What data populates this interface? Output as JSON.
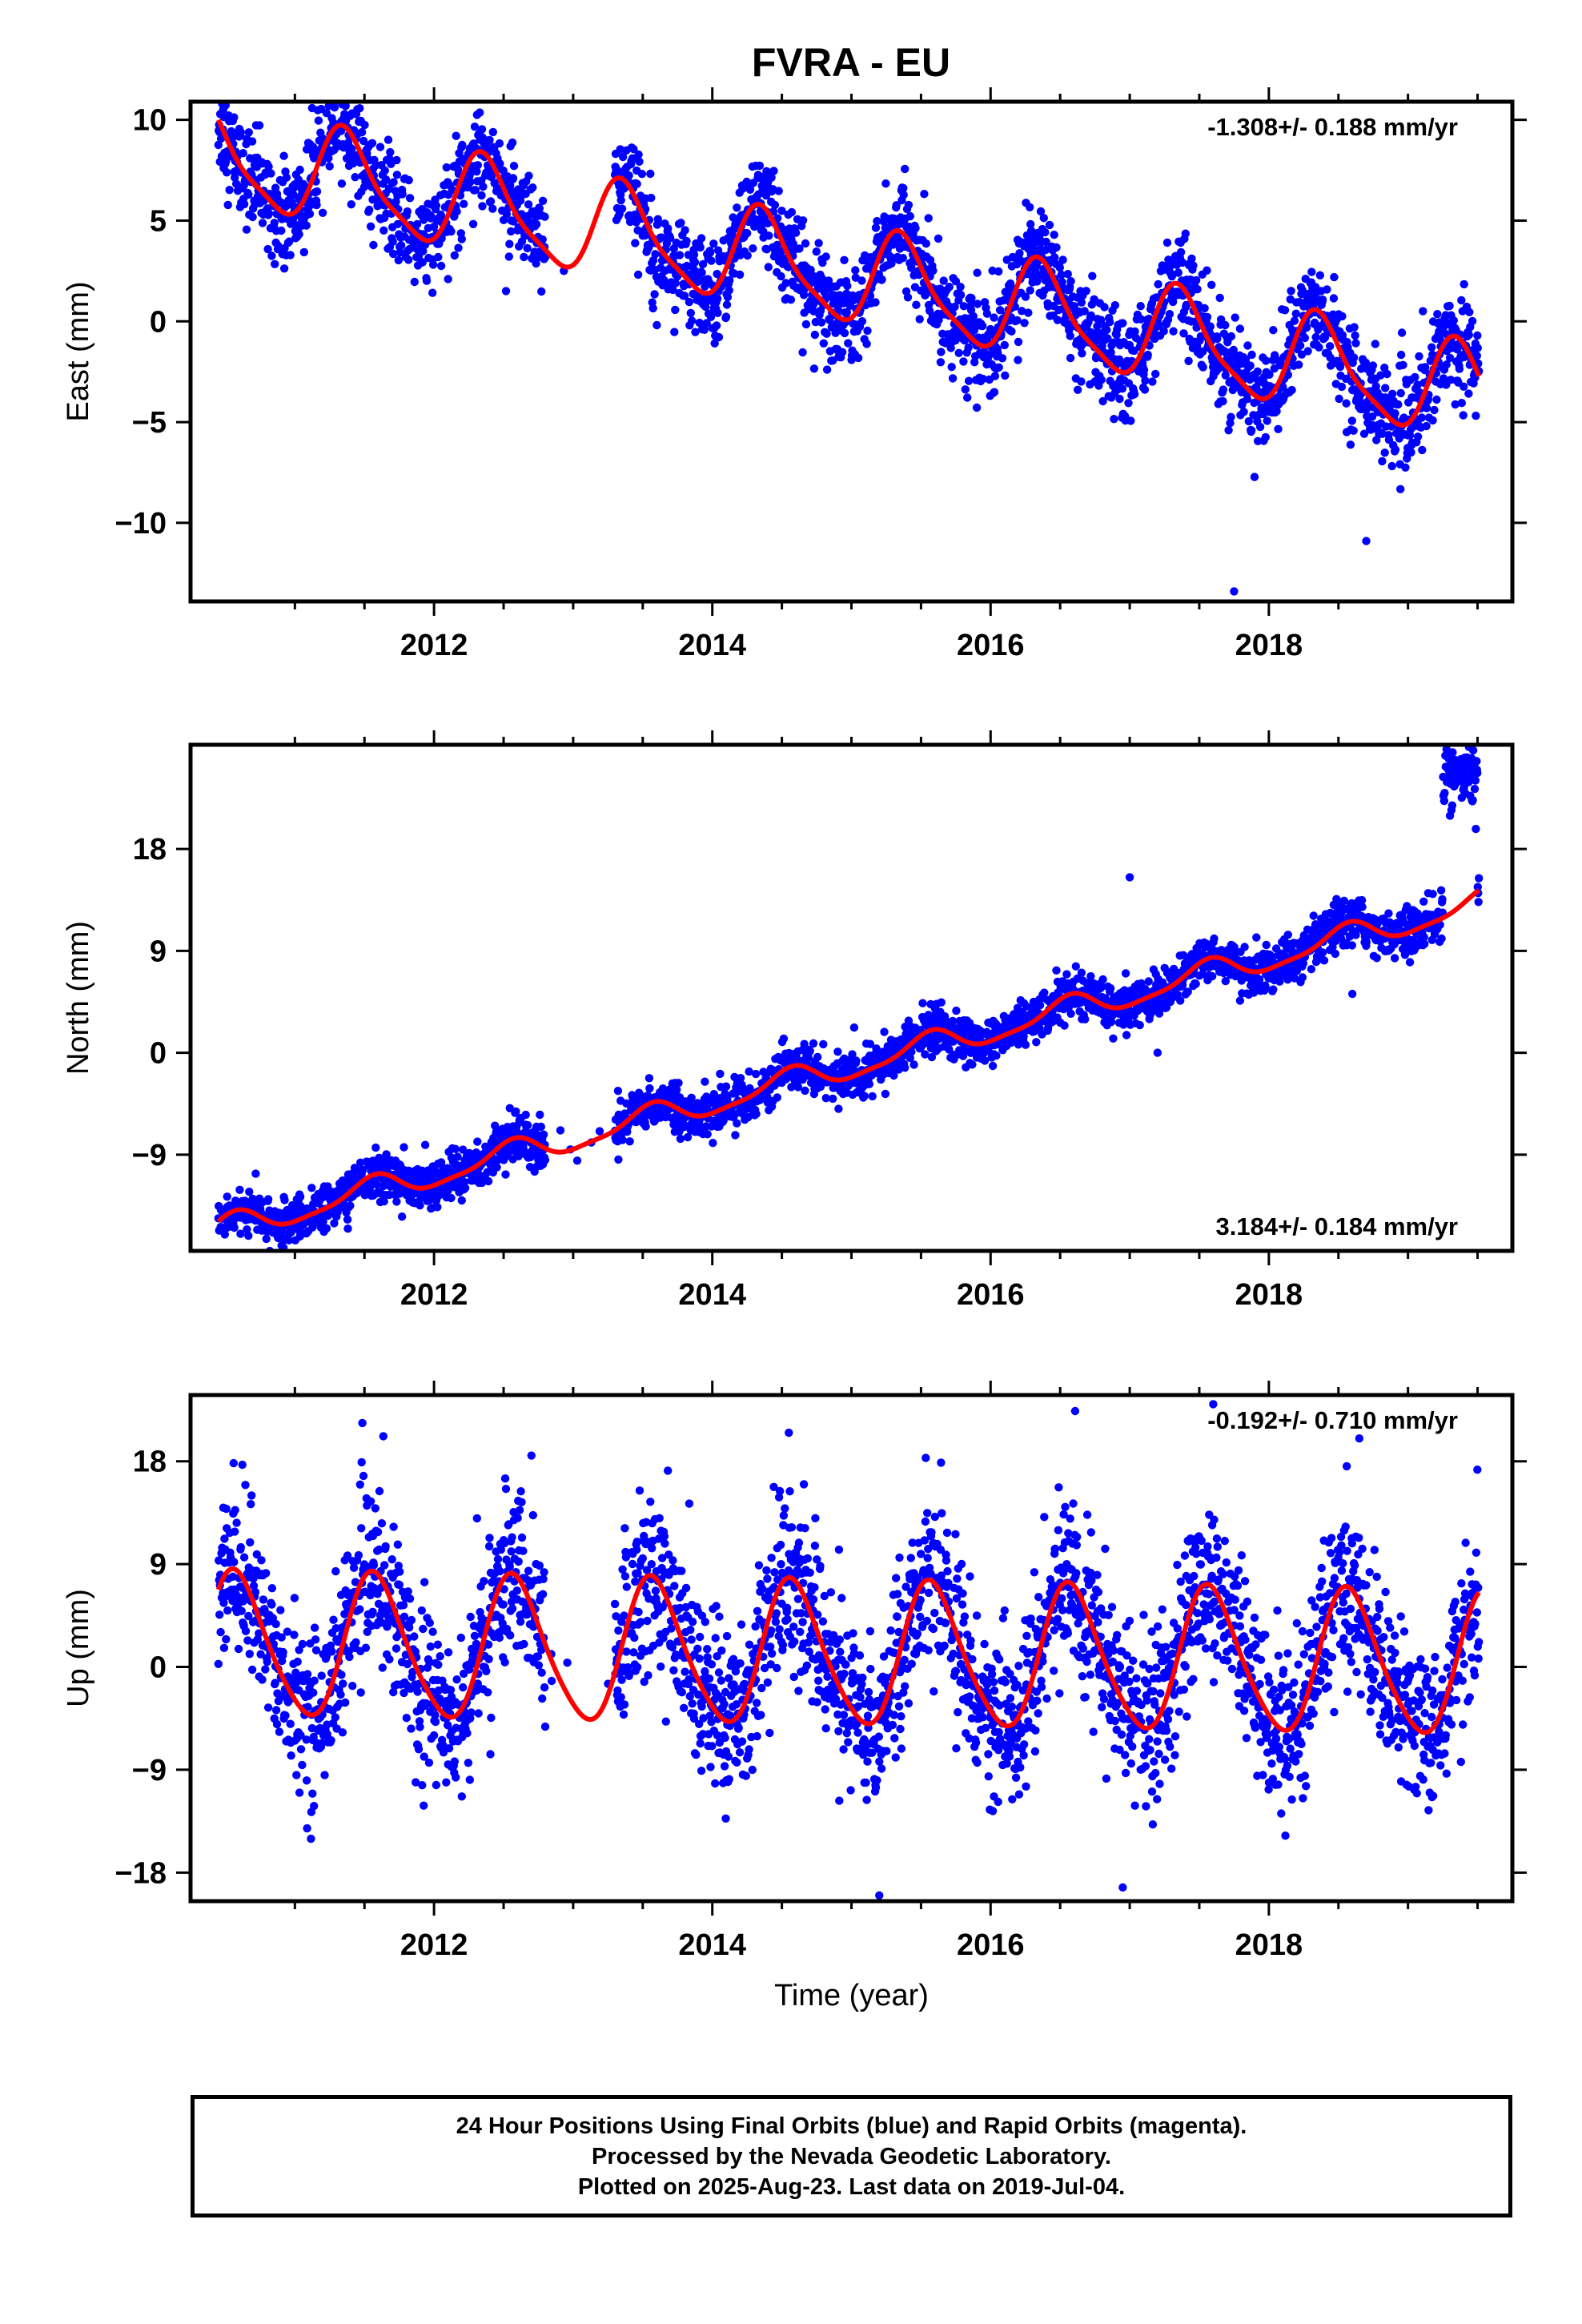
{
  "title": "FVRA - EU",
  "colors": {
    "points": "#0000ff",
    "model": "#ff0000",
    "frame": "#000000"
  },
  "chart_data": [
    {
      "type": "scatter",
      "panel": "east",
      "ylabel": "East (mm)",
      "xlabel": "",
      "xlim": [
        2010.25,
        2019.75
      ],
      "ylim": [
        -13.9,
        10.9
      ],
      "xticks": [
        2012,
        2014,
        2016,
        2018
      ],
      "yticks": [
        10,
        5,
        0,
        -5,
        -10
      ],
      "ytick_labels": [
        "10",
        "5",
        "0",
        "−5",
        "−10"
      ],
      "annotation": "-1.308+/- 0.188 mm/yr",
      "annotation_position": "top-right",
      "rate": -1.308,
      "rate_sigma": 0.188,
      "model": {
        "offset": 2.2,
        "ref_year": 2015,
        "amplitude": 2.3,
        "peak_phase": 0.37,
        "semi_amplitude": 0.55,
        "semi_phase": 0.3
      },
      "scatter_sigma": 1.2,
      "outliers": [
        {
          "x": 2017.75,
          "y": -13.4
        },
        {
          "x": 2014.4,
          "y": 6.9
        },
        {
          "x": 2018.7,
          "y": -10.9
        }
      ],
      "series": [
        {
          "name": "24 Hour Positions (Final Orbits)",
          "role": "points"
        },
        {
          "name": "Model fit",
          "role": "model"
        }
      ]
    },
    {
      "type": "scatter",
      "panel": "north",
      "ylabel": "North (mm)",
      "xlabel": "",
      "xlim": [
        2010.25,
        2019.75
      ],
      "ylim": [
        -17.5,
        27.2
      ],
      "xticks": [
        2012,
        2014,
        2016,
        2018
      ],
      "yticks": [
        18,
        9,
        0,
        -9
      ],
      "ytick_labels": [
        "18",
        "9",
        "0",
        "−9"
      ],
      "annotation": "3.184+/- 0.184 mm/yr",
      "annotation_position": "bottom-right",
      "rate": 3.184,
      "rate_sigma": 0.184,
      "model": {
        "offset": -1.2,
        "ref_year": 2015,
        "amplitude": 1.1,
        "peak_phase": 0.55,
        "semi_amplitude": 0.3,
        "semi_phase": 0.1
      },
      "scatter_sigma": 1.0,
      "late_offset_cluster": {
        "x_start": 2019.25,
        "x_end": 2019.5,
        "y_center": 24.5,
        "y_spread": 1.4
      },
      "outliers": [
        {
          "x": 2017.0,
          "y": 15.5
        },
        {
          "x": 2017.2,
          "y": 0.0
        },
        {
          "x": 2018.6,
          "y": 5.2
        }
      ],
      "series": [
        {
          "name": "24 Hour Positions (Final Orbits)",
          "role": "points"
        },
        {
          "name": "Model fit",
          "role": "model"
        }
      ]
    },
    {
      "type": "scatter",
      "panel": "up",
      "ylabel": "Up (mm)",
      "xlabel": "Time (year)",
      "xlim": [
        2010.25,
        2019.75
      ],
      "ylim": [
        -20.5,
        23.8
      ],
      "xticks": [
        2012,
        2014,
        2016,
        2018
      ],
      "yticks": [
        18,
        9,
        0,
        -9,
        -18
      ],
      "ytick_labels": [
        "18",
        "9",
        "0",
        "−9",
        "−18"
      ],
      "annotation": "-0.192+/- 0.710 mm/yr",
      "annotation_position": "top-right",
      "rate": -0.192,
      "rate_sigma": 0.71,
      "model": {
        "offset": 1.0,
        "ref_year": 2015,
        "amplitude": 6.2,
        "peak_phase": 0.58,
        "semi_amplitude": 0.8,
        "semi_phase": 0.0
      },
      "scatter_sigma": 3.6,
      "outliers": [
        {
          "x": 2014.55,
          "y": 20.5
        },
        {
          "x": 2015.2,
          "y": -20.0
        },
        {
          "x": 2016.95,
          "y": -19.3
        },
        {
          "x": 2017.6,
          "y": 23.0
        },
        {
          "x": 2018.65,
          "y": 20.0
        },
        {
          "x": 2012.7,
          "y": 18.5
        }
      ],
      "series": [
        {
          "name": "24 Hour Positions (Final Orbits)",
          "role": "points"
        },
        {
          "name": "Model fit",
          "role": "model"
        }
      ]
    }
  ],
  "data_span": {
    "start": 2010.45,
    "end": 2019.51,
    "gap": [
      2012.8,
      2013.3
    ]
  },
  "footer": {
    "line1": "24 Hour Positions Using Final Orbits (blue) and Rapid Orbits (magenta).",
    "line2": "Processed by the Nevada Geodetic Laboratory.",
    "line3": "Plotted on 2025-Aug-23. Last data on 2019-Jul-04."
  }
}
